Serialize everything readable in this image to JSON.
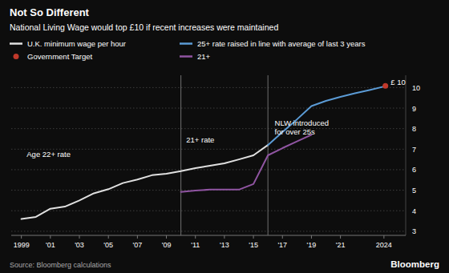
{
  "chart_data": {
    "type": "line",
    "title": "Not So Different",
    "subtitle": "National Living Wage would top £10 if recent increases were maintained",
    "source": "Source: Bloomberg calculations",
    "watermark": "Bloomberg",
    "series": [
      {
        "name": "U.K. minimum wage per hour",
        "color": "#e0e0e0",
        "type": "line",
        "x": [
          1999,
          2000,
          2001,
          2002,
          2003,
          2004,
          2005,
          2006,
          2007,
          2008,
          2009,
          2010,
          2011,
          2012,
          2013,
          2014,
          2015,
          2016
        ],
        "values": [
          3.6,
          3.7,
          4.1,
          4.2,
          4.5,
          4.85,
          5.05,
          5.35,
          5.52,
          5.73,
          5.8,
          5.93,
          6.08,
          6.19,
          6.31,
          6.5,
          6.7,
          7.2
        ]
      },
      {
        "name": "25+ rate raised in line with average of last 3 years",
        "color": "#5b9bd5",
        "type": "line",
        "x": [
          2016,
          2017,
          2018,
          2019,
          2020,
          2021,
          2022,
          2023,
          2024
        ],
        "values": [
          7.2,
          7.83,
          8.45,
          9.1,
          9.35,
          9.55,
          9.72,
          9.88,
          10.05
        ]
      },
      {
        "name": "Government Target",
        "color": "#c0392b",
        "type": "scatter",
        "marker": "circle",
        "x": [
          2024.1
        ],
        "values": [
          10.08
        ]
      },
      {
        "name": "21+",
        "color": "#9055a2",
        "type": "line",
        "x": [
          2010,
          2011,
          2012,
          2013,
          2014,
          2015,
          2016,
          2017,
          2018,
          2019
        ],
        "values": [
          4.92,
          4.98,
          5.03,
          5.03,
          5.03,
          5.3,
          6.7,
          7.05,
          7.38,
          7.7
        ]
      }
    ],
    "annotations": [
      {
        "text": "21+ rate",
        "x": 2010.2,
        "y": 7.25
      },
      {
        "text": "Age 22+ rate",
        "x": 1999.2,
        "y": 6.55
      },
      {
        "text": "NLW introduced\nfor over 25s",
        "x": 2016.3,
        "y": 8.05
      },
      {
        "text": "£ 10",
        "x": 2024.3,
        "y": 10.05
      }
    ],
    "vlines": [
      2010,
      2016
    ],
    "xlim": [
      1998.3,
      2025.5
    ],
    "xticks": [
      1999,
      {
        "value": 2001,
        "label": "'01"
      },
      {
        "value": 2003,
        "label": "'03"
      },
      {
        "value": 2005,
        "label": "'05"
      },
      {
        "value": 2007,
        "label": "'07"
      },
      {
        "value": 2009,
        "label": "'09"
      },
      {
        "value": 2011,
        "label": "'11"
      },
      {
        "value": 2013,
        "label": "'13"
      },
      {
        "value": 2015,
        "label": "'15"
      },
      {
        "value": 2017,
        "label": "'17"
      },
      {
        "value": 2019,
        "label": "'19"
      },
      {
        "value": 2021,
        "label": "'21"
      },
      2024
    ],
    "ylim": [
      2.8,
      10.6
    ],
    "yticks": [
      3,
      4,
      5,
      6,
      7,
      8,
      9,
      10
    ],
    "grid": true,
    "legend": "top-left"
  }
}
